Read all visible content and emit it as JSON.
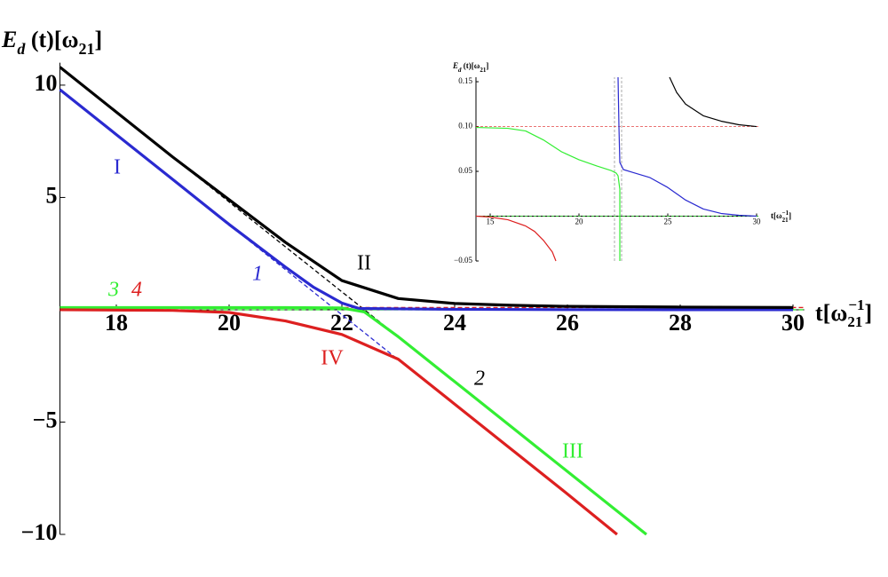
{
  "chart_data": [
    {
      "type": "line",
      "ylabel": [
        "E",
        "d",
        " (t)[ω",
        "21",
        "]"
      ],
      "xlabel": [
        "t[ω",
        "21",
        "−1",
        "]"
      ],
      "xlim": [
        17,
        30.2
      ],
      "ylim": [
        -10,
        11
      ],
      "xticks": [
        18,
        20,
        22,
        24,
        26,
        28,
        30
      ],
      "yticks": [
        {
          "value": -10,
          "label": "−10"
        },
        {
          "value": -5,
          "label": "−5"
        },
        5,
        10
      ],
      "series": [
        {
          "name": "I",
          "color": "#2a2ad0",
          "dashed": false,
          "x": [
            17,
            18,
            19,
            20,
            21,
            21.5,
            22,
            22.3,
            23,
            24,
            26,
            30
          ],
          "values": [
            9.8,
            7.8,
            5.8,
            3.8,
            1.9,
            1.0,
            0.3,
            0.06,
            0.04,
            0.02,
            0.005,
            0
          ]
        },
        {
          "name": "II",
          "color": "#000000",
          "dashed": false,
          "x": [
            17,
            18,
            19,
            20,
            21,
            22,
            23,
            24,
            25,
            26,
            28,
            30
          ],
          "values": [
            10.8,
            8.8,
            6.8,
            4.9,
            3.0,
            1.3,
            0.5,
            0.28,
            0.2,
            0.15,
            0.12,
            0.1
          ]
        },
        {
          "name": "III",
          "color": "#33ee33",
          "dashed": false,
          "x": [
            17,
            20,
            21,
            22,
            22.4,
            23,
            24,
            25,
            26,
            27,
            27.4
          ],
          "values": [
            0.1,
            0.1,
            0.1,
            0.08,
            -0.1,
            -1.2,
            -3.2,
            -5.2,
            -7.2,
            -9.2,
            -10
          ]
        },
        {
          "name": "IV",
          "color": "#dd2020",
          "dashed": false,
          "x": [
            17,
            19,
            20,
            21,
            22,
            23,
            24,
            25,
            26,
            26.88
          ],
          "values": [
            0,
            -0.03,
            -0.12,
            -0.5,
            -1.1,
            -2.2,
            -4.2,
            -6.2,
            -8.2,
            -10
          ]
        },
        {
          "name": "1",
          "color": "#2a2ad0",
          "dashed": true,
          "x": [
            17,
            26.88
          ],
          "values": [
            9.8,
            -10
          ]
        },
        {
          "name": "2",
          "color": "#000000",
          "dashed": true,
          "x": [
            17,
            27.4
          ],
          "values": [
            10.8,
            -10
          ]
        },
        {
          "name": "3",
          "color": "#33ee33",
          "dashed": true,
          "x": [
            17,
            30.2
          ],
          "values": [
            0,
            0
          ]
        },
        {
          "name": "4",
          "color": "#dd2020",
          "dashed": true,
          "x": [
            17,
            30.2
          ],
          "values": [
            0.1,
            0.1
          ]
        }
      ]
    },
    {
      "type": "line",
      "ylabel": [
        "E",
        "d",
        " (t)[ω",
        "21",
        "]"
      ],
      "xlabel": [
        "t[ω",
        "21",
        "−1",
        "]"
      ],
      "xlim": [
        14.2,
        30.1
      ],
      "ylim": [
        -0.05,
        0.155
      ],
      "xticks": [
        15,
        20,
        25,
        30
      ],
      "yticks": [
        {
          "value": -0.05,
          "label": "−0.05"
        },
        {
          "value": 0.05,
          "label": "0.05"
        },
        {
          "value": 0.1,
          "label": "0.10"
        },
        {
          "value": 0.15,
          "label": "0.15"
        }
      ],
      "series": [
        {
          "color": "#888888",
          "dashed": true,
          "x": [
            22.0,
            22.0
          ],
          "values": [
            -0.05,
            0.155
          ]
        },
        {
          "color": "#888888",
          "dashed": true,
          "x": [
            22.4,
            22.4
          ],
          "values": [
            -0.05,
            0.155
          ]
        },
        {
          "color": "#dd2020",
          "dashed": true,
          "x": [
            14.2,
            30.1
          ],
          "values": [
            0.1,
            0.1
          ]
        },
        {
          "color": "#33ee33",
          "dashed": true,
          "x": [
            14.2,
            30.1
          ],
          "values": [
            0,
            0
          ]
        },
        {
          "color": "#000000",
          "dashed": false,
          "x": [
            25.1,
            25.5,
            26,
            27,
            28,
            29,
            30
          ],
          "values": [
            0.155,
            0.138,
            0.125,
            0.112,
            0.106,
            0.102,
            0.1
          ]
        },
        {
          "color": "#33ee33",
          "dashed": false,
          "x": [
            14.2,
            16,
            17,
            18,
            19,
            20,
            21,
            21.8,
            22.1,
            22.2,
            22.3,
            22.3
          ],
          "values": [
            0.099,
            0.098,
            0.095,
            0.085,
            0.072,
            0.063,
            0.056,
            0.051,
            0.048,
            0.045,
            0.03,
            -0.05
          ]
        },
        {
          "color": "#2a2ad0",
          "dashed": false,
          "x": [
            22.2,
            22.25,
            22.3,
            22.5,
            23,
            24,
            25,
            26,
            27,
            28,
            29,
            30
          ],
          "values": [
            0.155,
            0.1,
            0.06,
            0.052,
            0.049,
            0.043,
            0.032,
            0.018,
            0.008,
            0.003,
            0.001,
            0
          ]
        },
        {
          "color": "#dd2020",
          "dashed": false,
          "x": [
            14.2,
            15,
            16,
            17,
            17.5,
            18,
            18.5,
            18.7
          ],
          "values": [
            0,
            -0.001,
            -0.004,
            -0.011,
            -0.017,
            -0.027,
            -0.04,
            -0.05
          ]
        }
      ]
    }
  ]
}
